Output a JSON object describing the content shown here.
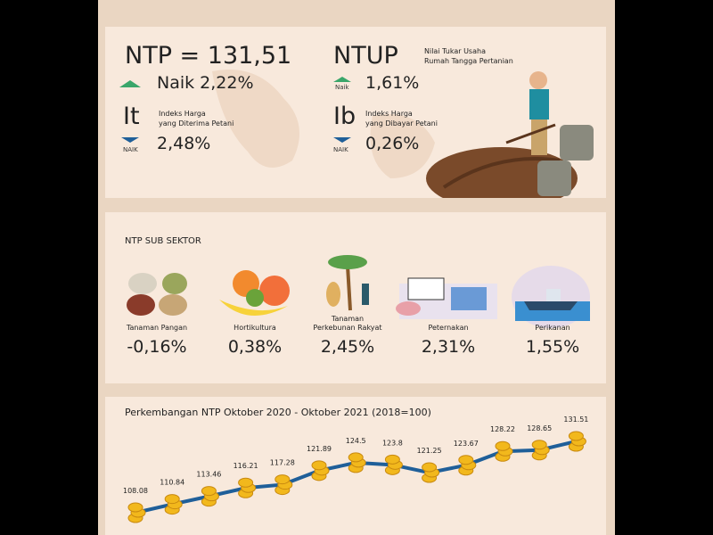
{
  "header": {
    "ntp_label": "NTP = 131,51",
    "ntp_change": "Naik 2,22%",
    "ntup_label": "NTUP",
    "ntup_desc": [
      "Nilai Tukar Usaha",
      "Rumah Tangga Pertanian"
    ],
    "ntup_badge": "Naik",
    "ntup_change": "1,61%",
    "it_label": "It",
    "it_desc": [
      "Indeks Harga",
      "yang Diterima Petani"
    ],
    "it_badge": "NAIK",
    "it_change": "2,48%",
    "ib_label": "Ib",
    "ib_desc": [
      "Indeks Harga",
      "yang Dibayar Petani"
    ],
    "ib_badge": "NAIK",
    "ib_change": "0,26%"
  },
  "sectors": {
    "title": "NTP SUB SEKTOR",
    "items": [
      {
        "name": [
          "Tanaman Pangan"
        ],
        "value": "-0,16%"
      },
      {
        "name": [
          "Hortikultura"
        ],
        "value": "0,38%"
      },
      {
        "name": [
          "Tanaman",
          "Perkebunan Rakyat"
        ],
        "value": "2,45%"
      },
      {
        "name": [
          "Peternakan"
        ],
        "value": "2,31%"
      },
      {
        "name": [
          "Perikanan"
        ],
        "value": "1,55%"
      }
    ]
  },
  "chart_data": {
    "type": "line",
    "title": "Perkembangan NTP Oktober 2020 - Oktober 2021 (2018=100)",
    "values": [
      108.08,
      110.84,
      113.46,
      116.21,
      117.28,
      121.89,
      124.5,
      123.8,
      121.25,
      123.67,
      128.22,
      128.65,
      131.51
    ],
    "color": "#1f5f99"
  }
}
